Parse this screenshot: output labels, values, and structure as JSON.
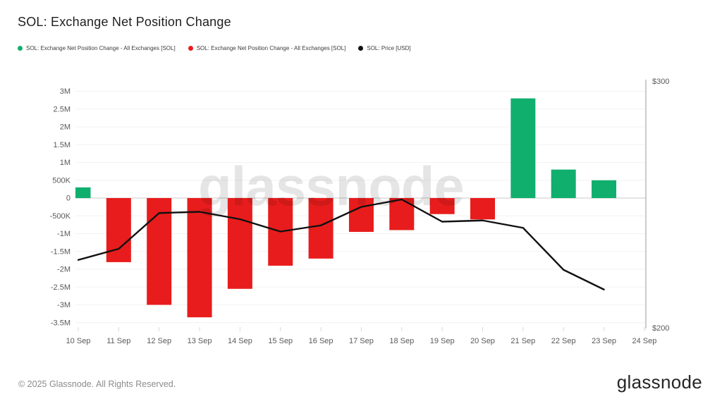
{
  "header": {
    "title": "SOL: Exchange Net Position Change"
  },
  "legend": {
    "items": [
      {
        "label": "SOL: Exchange Net Position Change - All Exchanges [SOL]",
        "color": "#10af6e"
      },
      {
        "label": "SOL: Exchange Net Position Change - All Exchanges [SOL]",
        "color": "#e81c1c"
      },
      {
        "label": "SOL: Price [USD]",
        "color": "#111111"
      }
    ]
  },
  "watermark": {
    "text": "glassnode"
  },
  "footer": {
    "copyright": "© 2025 Glassnode. All Rights Reserved.",
    "brand": "glassnode"
  },
  "chart_data": {
    "type": "bar",
    "title": "SOL: Exchange Net Position Change",
    "categories": [
      "10 Sep",
      "11 Sep",
      "12 Sep",
      "13 Sep",
      "14 Sep",
      "15 Sep",
      "16 Sep",
      "17 Sep",
      "18 Sep",
      "19 Sep",
      "20 Sep",
      "21 Sep",
      "22 Sep",
      "23 Sep"
    ],
    "x_axis_labels": [
      "10 Sep",
      "11 Sep",
      "12 Sep",
      "13 Sep",
      "14 Sep",
      "15 Sep",
      "16 Sep",
      "17 Sep",
      "18 Sep",
      "19 Sep",
      "20 Sep",
      "21 Sep",
      "22 Sep",
      "23 Sep",
      "24 Sep"
    ],
    "series": [
      {
        "name": "SOL: Exchange Net Position Change - All Exchanges [SOL]",
        "type": "bar",
        "unit": "SOL",
        "axis": "left",
        "positive_color": "#10af6e",
        "negative_color": "#e81c1c",
        "values": [
          300000,
          -1800000,
          -3000000,
          -3350000,
          -2550000,
          -1900000,
          -1700000,
          -950000,
          -900000,
          -450000,
          -600000,
          2800000,
          800000,
          500000
        ]
      },
      {
        "name": "SOL: Price [USD]",
        "type": "line",
        "unit": "USD",
        "axis": "right",
        "color": "#111111",
        "values": [
          227.5,
          232,
          246.5,
          247,
          244,
          239,
          241.5,
          249,
          252,
          243,
          243.5,
          240.5,
          223.5,
          215.5
        ]
      }
    ],
    "left_axis": {
      "tick_labels": [
        "3M",
        "2.5M",
        "2M",
        "1.5M",
        "1M",
        "500K",
        "0",
        "-500K",
        "-1M",
        "-1.5M",
        "-2M",
        "-2.5M",
        "-3M",
        "-3.5M"
      ],
      "tick_values": [
        3000000,
        2500000,
        2000000,
        1500000,
        1000000,
        500000,
        0,
        -500000,
        -1000000,
        -1500000,
        -2000000,
        -2500000,
        -3000000,
        -3500000
      ],
      "range": [
        -3500000,
        3000000
      ]
    },
    "right_axis": {
      "tick_labels": [
        "$300",
        "$200"
      ],
      "tick_values": [
        300,
        200
      ],
      "range": [
        200,
        300
      ]
    },
    "grid": true,
    "legend_position": "top-left"
  }
}
